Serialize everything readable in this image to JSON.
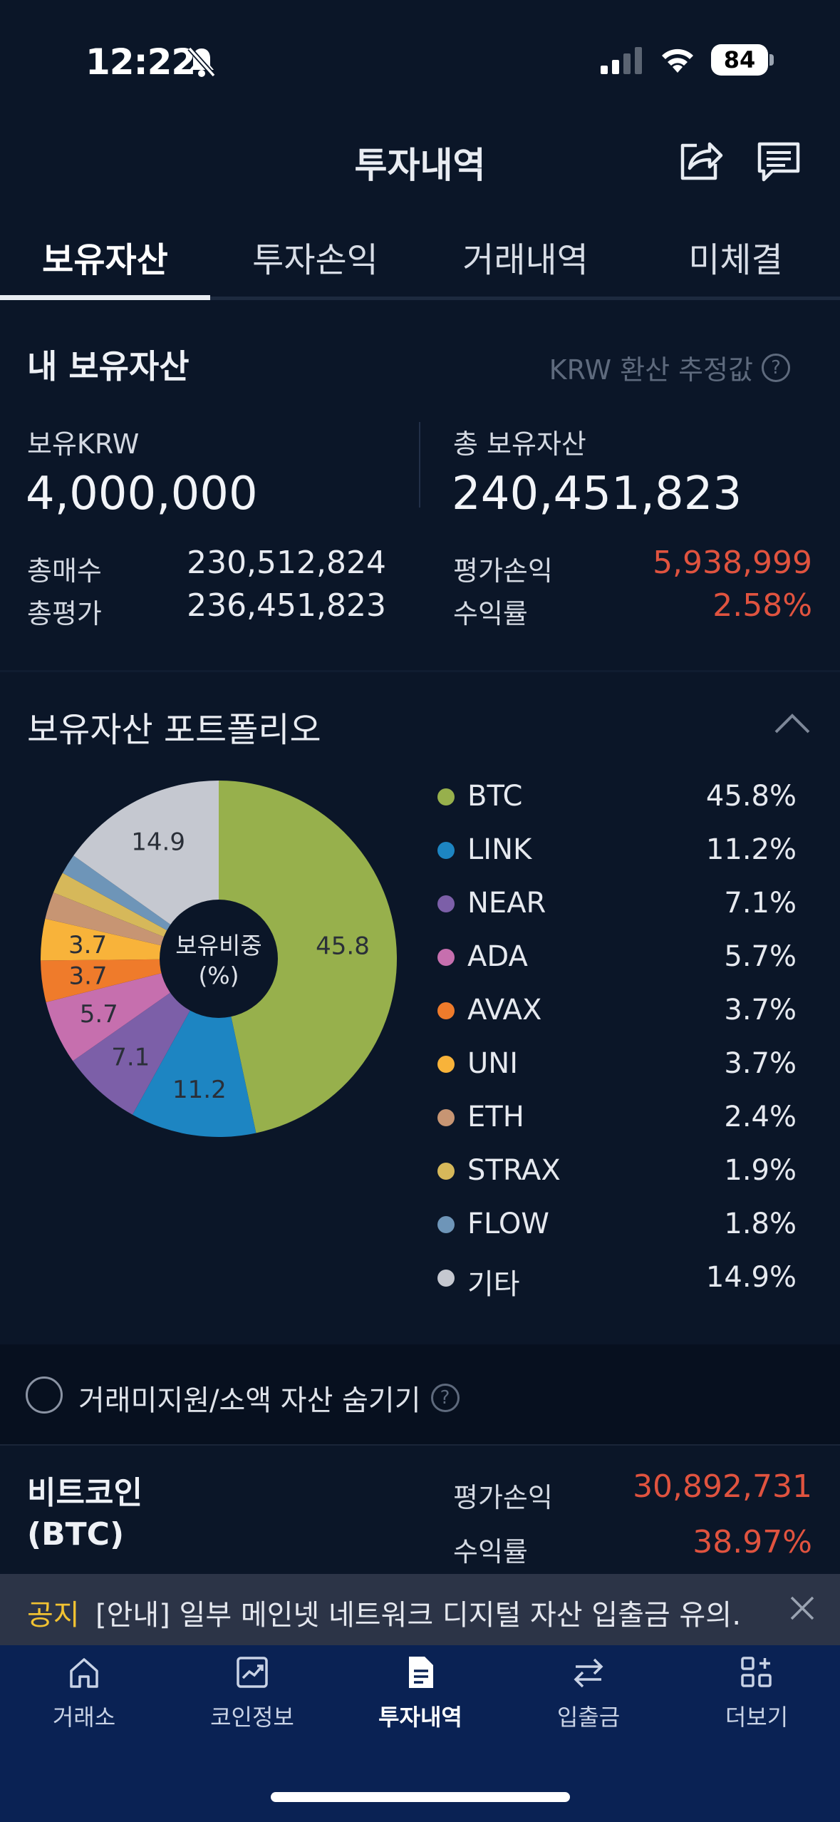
{
  "status": {
    "time": "12:22",
    "battery": "84"
  },
  "header": {
    "title": "투자내역"
  },
  "tabs": [
    {
      "label": "보유자산",
      "active": true
    },
    {
      "label": "투자손익",
      "active": false
    },
    {
      "label": "거래내역",
      "active": false
    },
    {
      "label": "미체결",
      "active": false
    }
  ],
  "holdings": {
    "title": "내 보유자산",
    "krw_note": "KRW 환산 추정값",
    "krw_label": "보유KRW",
    "krw_value": "4,000,000",
    "total_label": "총 보유자산",
    "total_value": "240,451,823",
    "buy_label": "총매수",
    "buy_value": "230,512,824",
    "eval_label": "총평가",
    "eval_value": "236,451,823",
    "pl_label": "평가손익",
    "pl_value": "5,938,999",
    "rate_label": "수익률",
    "rate_value": "2.58%"
  },
  "portfolio": {
    "title": "보유자산 포트폴리오",
    "center_label_1": "보유비중",
    "center_label_2": "(%)"
  },
  "chart_data": {
    "type": "pie",
    "title": "",
    "center_label": "보유비중 (%)",
    "slices": [
      {
        "name": "BTC",
        "value": 45.8,
        "label": "45.8%",
        "color": "#97b04c",
        "slice_label": "45.8"
      },
      {
        "name": "LINK",
        "value": 11.2,
        "label": "11.2%",
        "color": "#1d85c2",
        "slice_label": "11.2"
      },
      {
        "name": "NEAR",
        "value": 7.1,
        "label": "7.1%",
        "color": "#7c5fa8",
        "slice_label": "7.1"
      },
      {
        "name": "ADA",
        "value": 5.7,
        "label": "5.7%",
        "color": "#c66fae",
        "slice_label": "5.7"
      },
      {
        "name": "AVAX",
        "value": 3.7,
        "label": "3.7%",
        "color": "#ef7b2b",
        "slice_label": "3.7"
      },
      {
        "name": "UNI",
        "value": 3.7,
        "label": "3.7%",
        "color": "#f8b33a",
        "slice_label": "3.7"
      },
      {
        "name": "ETH",
        "value": 2.4,
        "label": "2.4%",
        "color": "#c79573",
        "slice_label": ""
      },
      {
        "name": "STRAX",
        "value": 1.9,
        "label": "1.9%",
        "color": "#d6b85a",
        "slice_label": ""
      },
      {
        "name": "FLOW",
        "value": 1.8,
        "label": "1.8%",
        "color": "#6e95b8",
        "slice_label": ""
      },
      {
        "name": "기타",
        "value": 14.9,
        "label": "14.9%",
        "color": "#c5c8d0",
        "slice_label": "14.9"
      }
    ],
    "legend_placement": "right"
  },
  "hide_toggle": {
    "label": "거래미지원/소액 자산 숨기기"
  },
  "coin": {
    "name_line1": "비트코인",
    "name_line2": "(BTC)",
    "pl_label": "평가손익",
    "pl_value": "30,892,731",
    "rate_label": "수익률",
    "rate_value": "38.97%"
  },
  "notice": {
    "tag": "공지",
    "text": "[안내] 일부 메인넷 네트워크 디지털 자산 입출금 유의…"
  },
  "nav": [
    {
      "label": "거래소",
      "icon": "home-icon",
      "active": false
    },
    {
      "label": "코인정보",
      "icon": "chart-icon",
      "active": false
    },
    {
      "label": "투자내역",
      "icon": "document-icon",
      "active": true
    },
    {
      "label": "입출금",
      "icon": "transfer-icon",
      "active": false
    },
    {
      "label": "더보기",
      "icon": "more-grid-icon",
      "active": false
    }
  ],
  "colors": {
    "background": "#0b1628",
    "profit": "#e0533f",
    "nav": "#0a2254",
    "notice_tag": "#f1c232"
  }
}
